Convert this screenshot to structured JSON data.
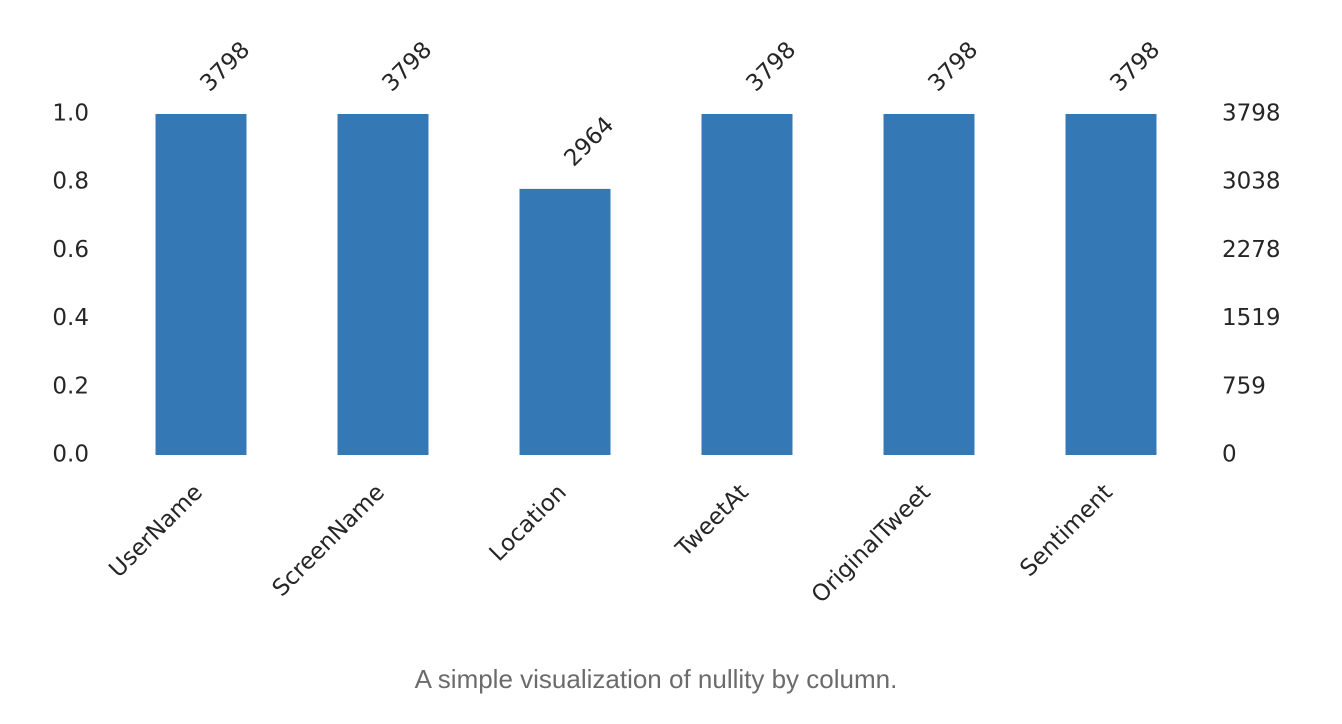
{
  "chart_data": {
    "type": "bar",
    "categories": [
      "UserName",
      "ScreenName",
      "Location",
      "TweetAt",
      "OriginalTweet",
      "Sentiment"
    ],
    "values": [
      1.0,
      1.0,
      0.7804,
      1.0,
      1.0,
      1.0
    ],
    "counts": [
      "3798",
      "3798",
      "2964",
      "3798",
      "3798",
      "3798"
    ],
    "ylim": [
      0,
      1
    ],
    "left_ticks": [
      "0.0",
      "0.2",
      "0.4",
      "0.6",
      "0.8",
      "1.0"
    ],
    "right_ticks": [
      "0",
      "759",
      "1519",
      "2278",
      "3038",
      "3798"
    ],
    "bar_color": "#3478b6",
    "grid": false
  },
  "caption": "A simple visualization of nullity by column."
}
